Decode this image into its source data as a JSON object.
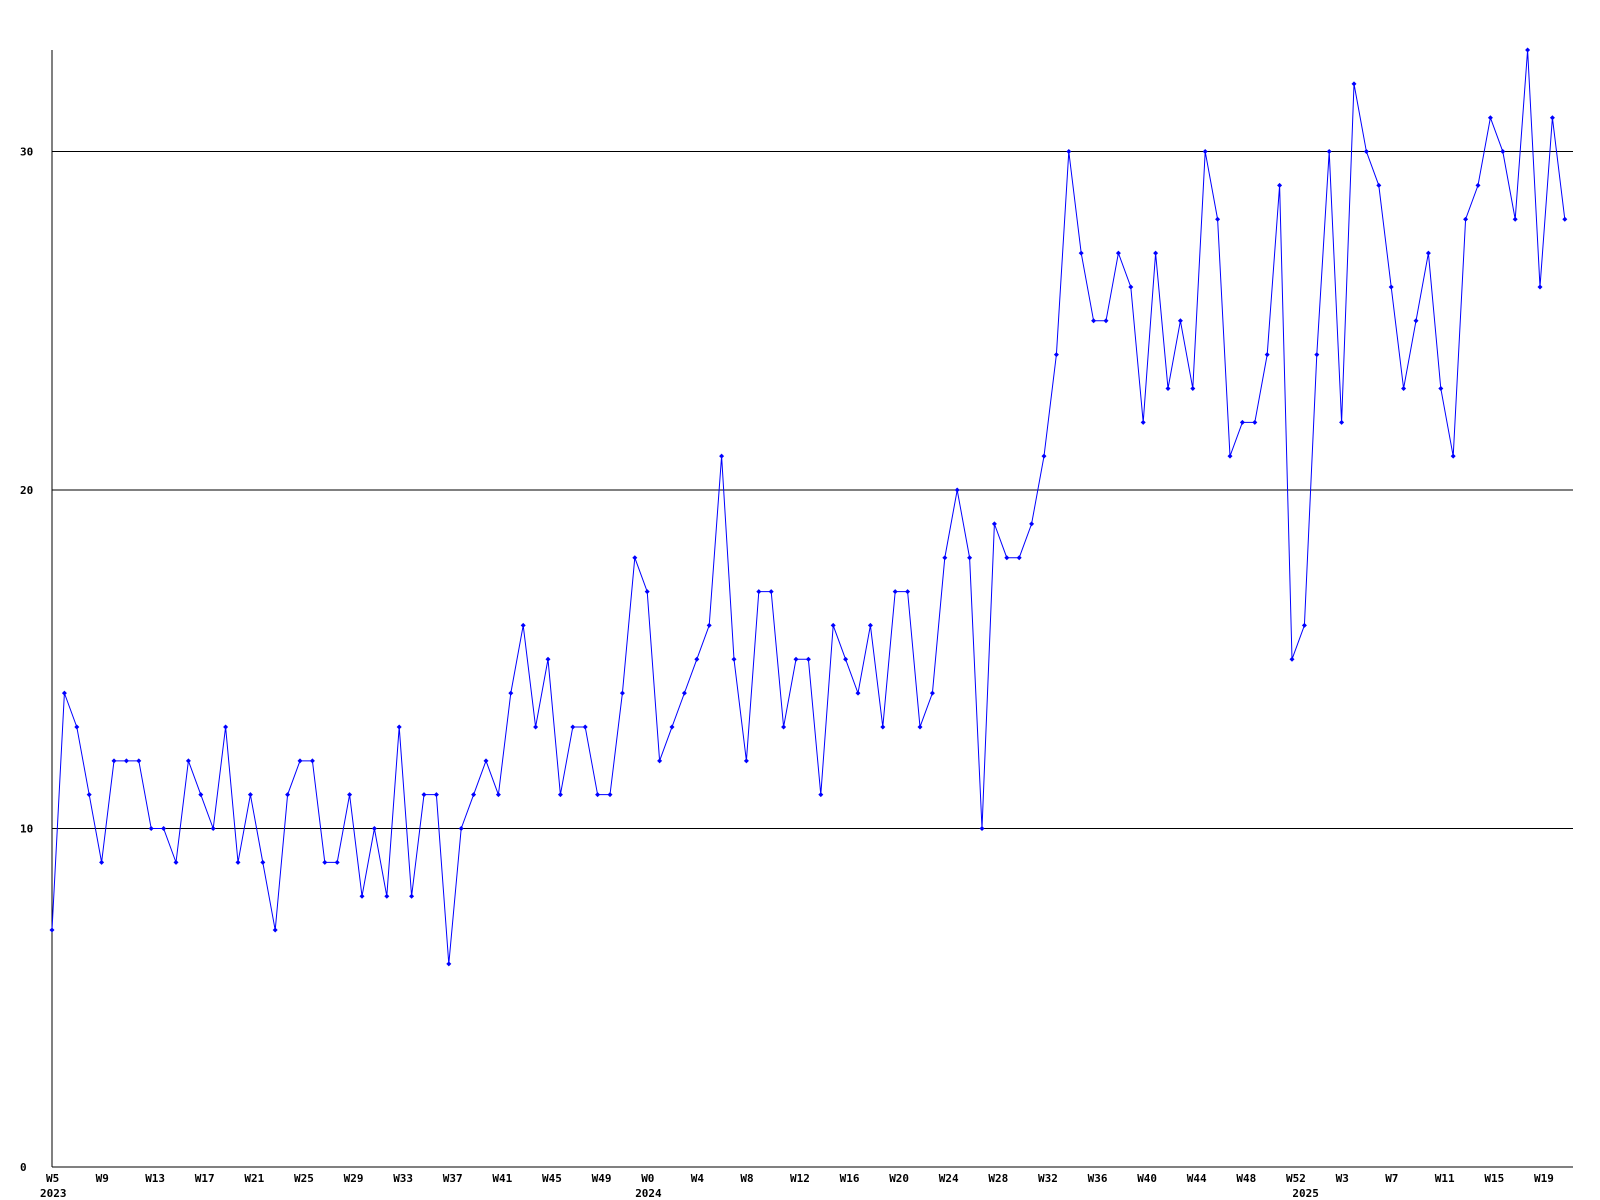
{
  "chart_data": {
    "type": "line",
    "categories": [
      "W5",
      null,
      null,
      null,
      "W9",
      null,
      null,
      null,
      "W13",
      null,
      null,
      null,
      "W17",
      null,
      null,
      null,
      "W21",
      null,
      null,
      null,
      "W25",
      null,
      null,
      null,
      "W29",
      null,
      null,
      null,
      "W33",
      null,
      null,
      null,
      "W37",
      null,
      null,
      null,
      "W41",
      null,
      null,
      null,
      "W45",
      null,
      null,
      null,
      "W49",
      null,
      null,
      null,
      "W0",
      null,
      null,
      null,
      "W4",
      null,
      null,
      null,
      "W8",
      null,
      null,
      null,
      "W12",
      null,
      null,
      null,
      "W16",
      null,
      null,
      null,
      "W20",
      null,
      null,
      null,
      "W24",
      null,
      null,
      null,
      "W28",
      null,
      null,
      null,
      "W32",
      null,
      null,
      null,
      "W36",
      null,
      null,
      null,
      "W40",
      null,
      null,
      null,
      "W44",
      null,
      null,
      null,
      "W48",
      null,
      null,
      null,
      "W52",
      null,
      null,
      null,
      "W3",
      null,
      null,
      null,
      "W7",
      null,
      null,
      null,
      "W11",
      null,
      null,
      null,
      "W15",
      null,
      null,
      null,
      "W19",
      null,
      null
    ],
    "years": [
      "2023",
      null,
      null,
      null,
      null,
      null,
      null,
      null,
      null,
      null,
      null,
      null,
      null,
      null,
      null,
      null,
      null,
      null,
      null,
      null,
      null,
      null,
      null,
      null,
      null,
      null,
      null,
      null,
      null,
      null,
      null,
      null,
      null,
      null,
      null,
      null,
      null,
      null,
      null,
      null,
      null,
      null,
      null,
      null,
      null,
      null,
      null,
      null,
      "2024",
      null,
      null,
      null,
      null,
      null,
      null,
      null,
      null,
      null,
      null,
      null,
      null,
      null,
      null,
      null,
      null,
      null,
      null,
      null,
      null,
      null,
      null,
      null,
      null,
      null,
      null,
      null,
      null,
      null,
      null,
      null,
      null,
      null,
      null,
      null,
      null,
      null,
      null,
      null,
      null,
      null,
      null,
      null,
      null,
      null,
      null,
      null,
      null,
      null,
      null,
      null,
      null,
      "2025",
      null,
      null,
      null,
      null,
      null,
      null,
      null,
      null,
      null,
      null,
      null,
      null,
      null,
      null,
      null,
      null,
      null,
      null,
      null,
      null,
      null
    ],
    "values": [
      7,
      14,
      13,
      11,
      9,
      12,
      12,
      12,
      10,
      10,
      9,
      12,
      11,
      10,
      13,
      9,
      11,
      9,
      7,
      11,
      12,
      12,
      9,
      9,
      11,
      8,
      10,
      8,
      13,
      8,
      11,
      11,
      6,
      10,
      11,
      12,
      11,
      14,
      16,
      13,
      15,
      11,
      13,
      13,
      11,
      11,
      14,
      18,
      17,
      12,
      13,
      14,
      15,
      16,
      21,
      15,
      12,
      17,
      17,
      13,
      15,
      15,
      11,
      16,
      15,
      14,
      16,
      13,
      17,
      17,
      13,
      14,
      18,
      20,
      18,
      10,
      19,
      18,
      18,
      19,
      21,
      24,
      30,
      27,
      25,
      25,
      27,
      26,
      22,
      27,
      23,
      25,
      23,
      30,
      28,
      21,
      22,
      22,
      24,
      29,
      15,
      16,
      24,
      30,
      22,
      32,
      30,
      29,
      26,
      23,
      25,
      27,
      23,
      21,
      28,
      29,
      31,
      30,
      28,
      33,
      26,
      31,
      28
    ],
    "color": "#0000ff",
    "ylim": [
      0,
      33
    ],
    "yticks": [
      0,
      10,
      20,
      30
    ],
    "grid": true
  }
}
